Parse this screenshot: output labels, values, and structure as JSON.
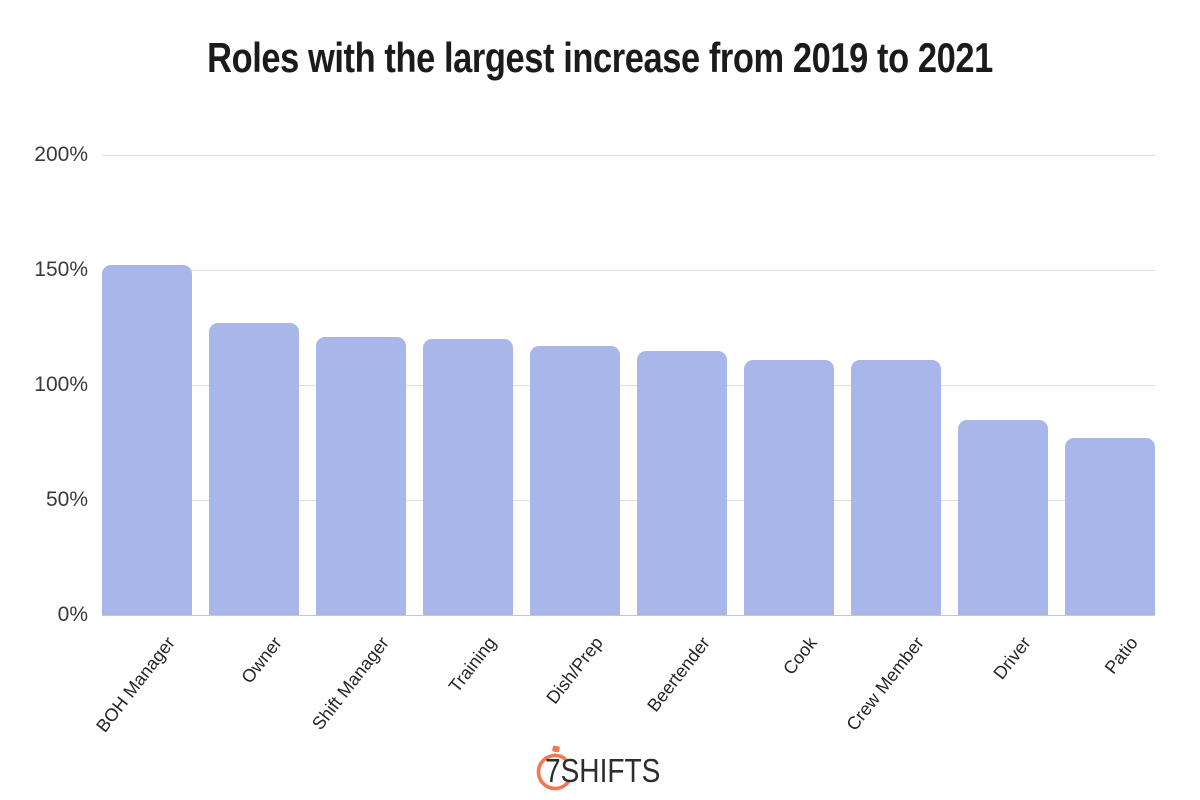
{
  "title": "Roles with the largest increase from 2019 to 2021",
  "chart_data": {
    "type": "bar",
    "title": "Roles with the largest increase from 2019 to 2021",
    "categories": [
      "BOH Manager",
      "Owner",
      "Shift Manager",
      "Training",
      "Dish/Prep",
      "Beertender",
      "Cook",
      "Crew Member",
      "Driver",
      "Patio"
    ],
    "values": [
      152,
      127,
      121,
      120,
      117,
      115,
      111,
      111,
      85,
      77
    ],
    "value_unit": "%",
    "xlabel": "",
    "ylabel": "",
    "ylim": [
      0,
      200
    ],
    "yticks": [
      {
        "value": 0,
        "label": "0%"
      },
      {
        "value": 50,
        "label": "50%"
      },
      {
        "value": 100,
        "label": "100%"
      },
      {
        "value": 150,
        "label": "150%"
      },
      {
        "value": 200,
        "label": "200%"
      }
    ],
    "grid": true,
    "legend": false,
    "bar_color": "#a9b6e9",
    "gridline_color": "#dedede",
    "axis_line_color": "#c6c6c6"
  },
  "logo": {
    "text": "7SHIFTS",
    "accent_color": "#f6764f",
    "text_color": "#2d2d2d"
  }
}
